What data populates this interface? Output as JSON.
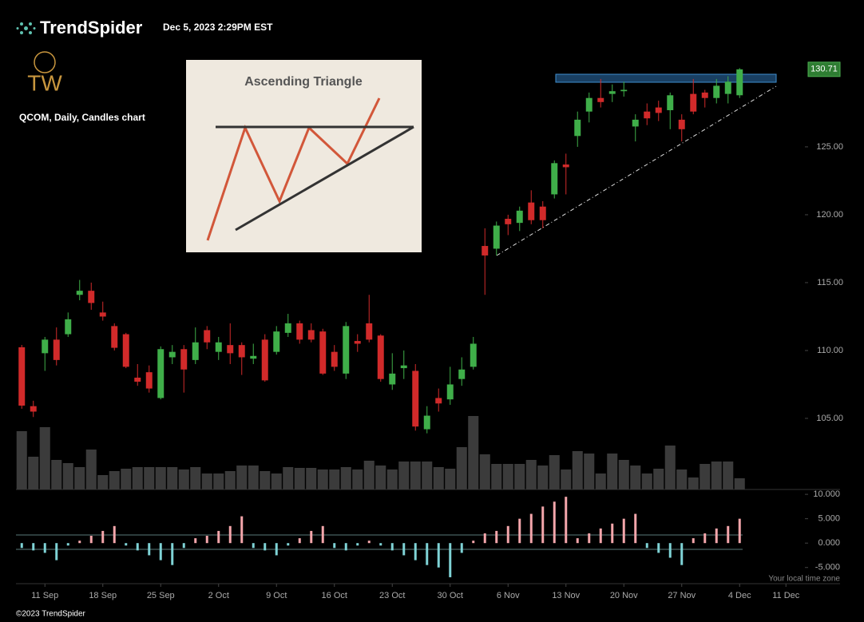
{
  "header": {
    "brand": "TrendSpider",
    "timestamp": "Dec 5, 2023 2:29PM EST",
    "logo": "TW"
  },
  "inset": {
    "title": "Ascending Triangle"
  },
  "footer": {
    "timezone": "Your local time zone",
    "copyright": "©2023 TrendSpider"
  },
  "chart_data": {
    "type": "candlestick",
    "title": "QCOM, Daily, Candles chart",
    "open": [
      110.24,
      105.9,
      109.8,
      110.8,
      111.2,
      114.1,
      114.4,
      112.8,
      111.8,
      111.2,
      108.0,
      108.4,
      106.5,
      109.5,
      110.1,
      109.3,
      111.5,
      109.9,
      110.4,
      110.4,
      109.4,
      110.8,
      109.9,
      111.3,
      112.0,
      111.5,
      111.4,
      109.9,
      108.3,
      110.7,
      112.0,
      111.1,
      107.5,
      108.7,
      108.5,
      104.2,
      106.5,
      106.4,
      107.9,
      108.8,
      117.7,
      117.5,
      119.7,
      119.4,
      120.9,
      120.6,
      121.5,
      123.7,
      125.8,
      127.6,
      128.6,
      128.9,
      129.1,
      126.5,
      127.6,
      127.9,
      127.7,
      127.0,
      128.9,
      129.0,
      128.6,
      128.9,
      128.8
    ],
    "high": [
      110.41,
      106.3,
      111.0,
      111.7,
      112.8,
      115.2,
      115.0,
      113.6,
      112.0,
      111.3,
      109.0,
      108.9,
      110.3,
      110.4,
      110.4,
      111.7,
      111.8,
      111.0,
      112.0,
      110.6,
      110.5,
      111.2,
      111.8,
      112.7,
      112.2,
      112.0,
      111.6,
      110.4,
      112.1,
      111.2,
      114.1,
      111.2,
      109.8,
      110.0,
      109.0,
      105.9,
      107.2,
      108.8,
      109.5,
      111.0,
      119.0,
      119.5,
      120.0,
      120.6,
      121.8,
      121.0,
      124.0,
      124.5,
      127.6,
      129.0,
      130.0,
      129.6,
      129.8,
      127.4,
      128.2,
      128.4,
      129.0,
      127.4,
      130.0,
      129.2,
      130.0,
      130.2,
      130.8
    ],
    "low": [
      105.71,
      105.1,
      108.5,
      108.9,
      111.0,
      113.7,
      113.0,
      112.2,
      110.0,
      108.7,
      107.4,
      106.9,
      106.4,
      109.0,
      106.9,
      109.0,
      110.1,
      109.3,
      109.0,
      108.2,
      109.0,
      107.7,
      109.7,
      111.0,
      110.5,
      110.6,
      108.2,
      108.5,
      107.9,
      109.9,
      110.6,
      107.7,
      107.1,
      107.9,
      104.1,
      103.9,
      105.5,
      106.0,
      107.4,
      108.6,
      114.1,
      117.0,
      118.5,
      118.8,
      119.3,
      119.0,
      121.2,
      121.5,
      125.0,
      126.8,
      127.9,
      128.3,
      128.7,
      125.4,
      126.6,
      126.9,
      126.3,
      125.4,
      127.4,
      127.9,
      128.2,
      128.2,
      128.6
    ],
    "close": [
      105.94,
      105.5,
      110.8,
      109.3,
      112.3,
      114.4,
      113.5,
      112.5,
      110.2,
      108.8,
      107.7,
      107.2,
      110.1,
      109.9,
      108.6,
      110.6,
      110.6,
      110.6,
      109.8,
      109.5,
      109.6,
      107.8,
      111.4,
      112.0,
      110.8,
      110.8,
      108.3,
      108.8,
      111.8,
      110.5,
      110.8,
      107.9,
      108.3,
      108.9,
      104.4,
      105.2,
      106.1,
      107.5,
      108.6,
      110.5,
      117.0,
      119.2,
      119.3,
      120.3,
      119.6,
      119.6,
      123.8,
      123.5,
      127.0,
      128.6,
      128.3,
      129.1,
      129.2,
      127.0,
      127.1,
      127.5,
      128.8,
      126.3,
      127.6,
      128.6,
      129.5,
      129.8,
      130.71
    ],
    "volume": [
      73,
      41,
      78,
      37,
      33,
      28,
      50,
      18,
      23,
      26,
      28,
      28,
      28,
      28,
      25,
      28,
      20,
      20,
      23,
      30,
      30,
      23,
      20,
      28,
      27,
      27,
      25,
      25,
      28,
      25,
      36,
      30,
      25,
      35,
      35,
      35,
      28,
      26,
      53,
      92,
      44,
      32,
      32,
      32,
      37,
      30,
      43,
      25,
      48,
      45,
      20,
      45,
      37,
      30,
      20,
      26,
      55,
      25,
      15,
      32,
      35,
      35,
      14
    ],
    "histogram": [
      -1,
      -1.5,
      -2,
      -3.5,
      -0.5,
      0.5,
      1.5,
      2.5,
      3.5,
      -0.5,
      -1.5,
      -2.5,
      -3.5,
      -4.5,
      -1,
      1,
      1.5,
      2.5,
      3.5,
      5.5,
      -1,
      -1.5,
      -2.5,
      -0.5,
      1,
      2.5,
      3.5,
      -1,
      -1.5,
      -0.5,
      0.5,
      -0.5,
      -1.5,
      -2.5,
      -3.5,
      -4.5,
      -5,
      -7,
      -2,
      0.5,
      2,
      2.5,
      3.5,
      5,
      6,
      7.5,
      8.5,
      9.5,
      1,
      2,
      3,
      4,
      5,
      6,
      -1,
      -2,
      -3,
      -4.5,
      1,
      2,
      3,
      3.5,
      5
    ],
    "up_color": "#3fae49",
    "down_color": "#d12a2a",
    "volume_color": "#3b3b3b",
    "hist_up_color": "#f4a6ab",
    "hist_down_color": "#7fd3d6",
    "xlim": [
      -0.5,
      67
    ],
    "xticks": [
      {
        "value": 2,
        "label": "11 Sep"
      },
      {
        "value": 7,
        "label": "18 Sep"
      },
      {
        "value": 12,
        "label": "25 Sep"
      },
      {
        "value": 17,
        "label": "2 Oct"
      },
      {
        "value": 22,
        "label": "9 Oct"
      },
      {
        "value": 27,
        "label": "16 Oct"
      },
      {
        "value": 32,
        "label": "23 Oct"
      },
      {
        "value": 37,
        "label": "30 Oct"
      },
      {
        "value": 42,
        "label": "6 Nov"
      },
      {
        "value": 47,
        "label": "13 Nov"
      },
      {
        "value": 52,
        "label": "20 Nov"
      },
      {
        "value": 57,
        "label": "27 Nov"
      },
      {
        "value": 62,
        "label": "4 Dec"
      },
      {
        "value": 66,
        "label": "11 Dec"
      }
    ],
    "ylim": [
      100,
      131.7
    ],
    "yticks": [
      {
        "value": 105,
        "label": "105.00"
      },
      {
        "value": 110,
        "label": "110.00"
      },
      {
        "value": 115,
        "label": "115.00"
      },
      {
        "value": 120,
        "label": "120.00"
      },
      {
        "value": 125,
        "label": "125.00"
      }
    ],
    "y2lim": [
      -7.5,
      11
    ],
    "y2ticks": [
      {
        "value": 10,
        "label": "10.000"
      },
      {
        "value": 5,
        "label": "5.000"
      },
      {
        "value": 0,
        "label": "0.000"
      },
      {
        "value": -5,
        "label": "-5.000"
      }
    ]
  }
}
